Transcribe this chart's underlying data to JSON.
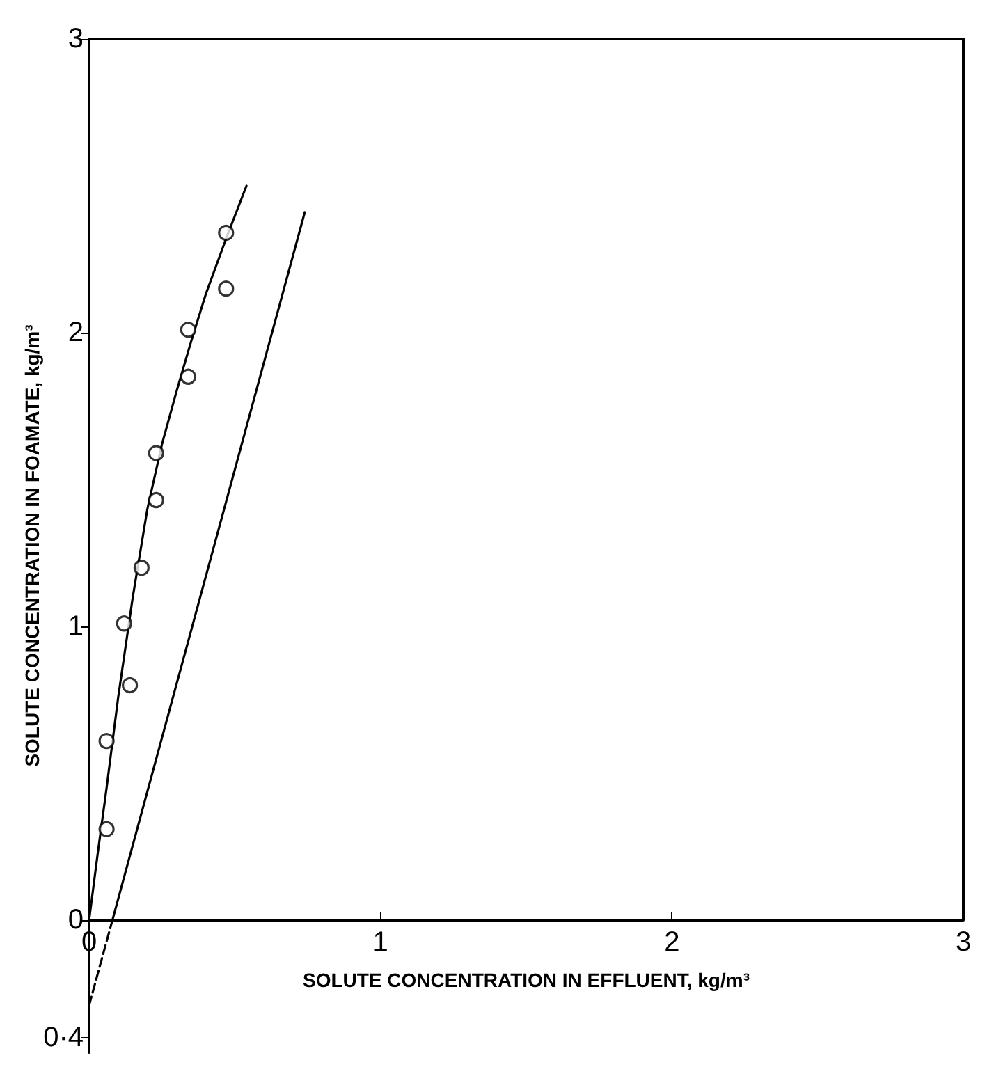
{
  "chart_data": {
    "type": "scatter",
    "xlabel": "SOLUTE CONCENTRATION IN EFFLUENT, kg/m³",
    "ylabel": "SOLUTE CONCENTRATION IN FOAMATE, kg/m³",
    "xlim": [
      0,
      3
    ],
    "ylim": [
      -0.45,
      3
    ],
    "xticks": [
      0,
      1,
      2,
      3
    ],
    "yticks": [
      {
        "value": -0.4,
        "label": "0·4"
      },
      0,
      1,
      2,
      3
    ],
    "marker": "circle",
    "series": [
      {
        "color": "#000000",
        "x": [
          0.06,
          0.06,
          0.14,
          0.12,
          0.18,
          0.23,
          0.23,
          0.34,
          0.34,
          0.47,
          0.47
        ],
        "values": [
          0.31,
          0.61,
          0.8,
          1.01,
          1.2,
          1.43,
          1.59,
          1.85,
          2.01,
          2.15,
          2.34
        ]
      },
      {
        "type": "line",
        "color": "#000000",
        "marker": "none",
        "line_style": "solid",
        "x": [
          0,
          0.03,
          0.06,
          0.1,
          0.15,
          0.2,
          0.25,
          0.3,
          0.35,
          0.4,
          0.47,
          0.54
        ],
        "values": [
          0,
          0.23,
          0.45,
          0.76,
          1.1,
          1.4,
          1.62,
          1.8,
          1.97,
          2.13,
          2.32,
          2.5
        ]
      },
      {
        "type": "line",
        "color": "#000000",
        "marker": "none",
        "line_style": "solid",
        "x": [
          0.08,
          0.74
        ],
        "values": [
          0,
          2.41
        ]
      },
      {
        "type": "line",
        "color": "#000000",
        "marker": "none",
        "line_style": "dashed",
        "x": [
          0,
          0.08
        ],
        "values": [
          -0.29,
          0
        ]
      }
    ]
  }
}
